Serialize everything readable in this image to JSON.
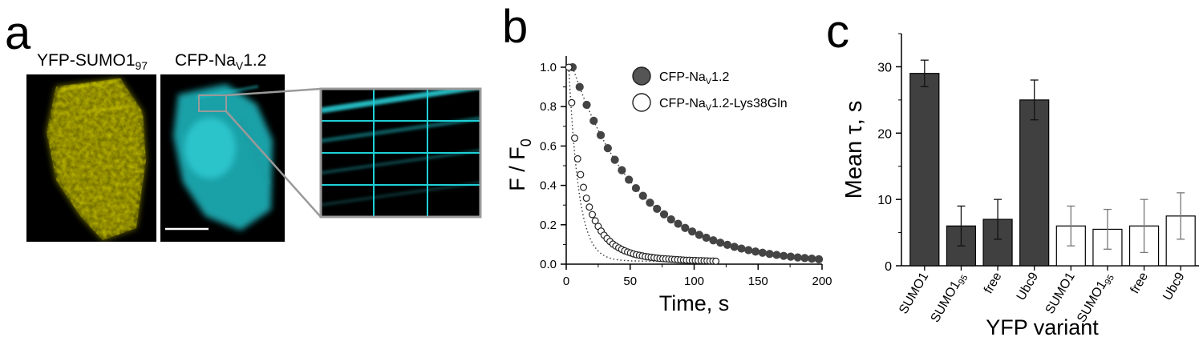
{
  "panel_a": {
    "letter": "a",
    "image1": {
      "label": "YFP-SUMO1",
      "label_sub": "97",
      "color": "#c9c400"
    },
    "image2": {
      "label": "CFP-Na",
      "label_sub": "V",
      "label_suffix": "1.2",
      "color": "#1fd0d8"
    },
    "zoom_grid_color": "#1fd0d8",
    "scale_bar_color": "#ffffff"
  },
  "panel_b": {
    "letter": "b"
  },
  "panel_c": {
    "letter": "c"
  },
  "chart_data": [
    {
      "type": "scatter",
      "panel": "b",
      "xlabel": "Time, s",
      "ylabel": {
        "main": "F / F",
        "sub": "0"
      },
      "xlim": [
        0,
        200
      ],
      "ylim": [
        0,
        1.0
      ],
      "xticks": [
        0,
        50,
        100,
        150,
        200
      ],
      "xtick_labels": [
        "0",
        "50",
        "100",
        "150",
        "200"
      ],
      "yticks": [
        0.0,
        0.2,
        0.4,
        0.6,
        0.8,
        1.0
      ],
      "ytick_labels": [
        "0.0",
        "0.2",
        "0.4",
        "0.6",
        "0.8",
        "1.0"
      ],
      "legend_placement": "top-right",
      "series": [
        {
          "name": {
            "main": "CFP-Na",
            "sub": "V",
            "suffix": "1.2"
          },
          "marker": "filled",
          "color": "#444444",
          "fit": {
            "amplitude": 1.0,
            "tau": 52,
            "t0": 5
          },
          "x": [
            5,
            10.5,
            16,
            21.5,
            27,
            32.5,
            38,
            43.5,
            49,
            54.5,
            60,
            65.5,
            71,
            76.5,
            82,
            87.5,
            93,
            98.5,
            104,
            109.5,
            115,
            120.5,
            126,
            131.5,
            137,
            142.5,
            148,
            153.5,
            159,
            164.5,
            170,
            175.5,
            181,
            186.5,
            192,
            197.5
          ],
          "y": [
            1.0,
            0.9,
            0.809,
            0.728,
            0.655,
            0.589,
            0.53,
            0.477,
            0.429,
            0.386,
            0.347,
            0.312,
            0.281,
            0.253,
            0.227,
            0.205,
            0.184,
            0.166,
            0.149,
            0.134,
            0.121,
            0.109,
            0.098,
            0.088,
            0.079,
            0.071,
            0.064,
            0.058,
            0.052,
            0.047,
            0.042,
            0.038,
            0.034,
            0.031,
            0.028,
            0.025
          ]
        },
        {
          "name": {
            "main": "CFP-Na",
            "sub": "V",
            "suffix": "1.2-Lys38Gln"
          },
          "marker": "open",
          "color": "#222222",
          "fit": {
            "amplitude": 0.93,
            "tau": 7.8,
            "t0": 2,
            "offset": 0.07,
            "plateau": 0.015
          },
          "x": [
            2,
            4.3,
            6.6,
            8.9,
            11.2,
            13.5,
            15.8,
            18.1,
            20.4,
            22.7,
            25,
            27.3,
            29.6,
            31.9,
            34.2,
            36.5,
            38.8,
            41.1,
            43.4,
            45.7,
            48,
            50.3,
            52.6,
            54.9,
            57.2,
            59.5,
            61.8,
            64.1,
            66.4,
            68.7,
            71,
            73.3,
            75.6,
            77.9,
            80.2,
            82.5,
            84.8,
            87.1,
            89.4,
            91.7,
            94,
            96.3,
            98.6,
            100.9,
            103.2,
            105.5,
            107.8,
            110.1,
            112.4,
            114.7,
            117
          ],
          "y": [
            1.0,
            0.82,
            0.64,
            0.535,
            0.455,
            0.39,
            0.335,
            0.29,
            0.252,
            0.22,
            0.192,
            0.168,
            0.147,
            0.13,
            0.115,
            0.102,
            0.092,
            0.083,
            0.075,
            0.068,
            0.062,
            0.057,
            0.052,
            0.048,
            0.045,
            0.042,
            0.039,
            0.037,
            0.035,
            0.033,
            0.031,
            0.029,
            0.028,
            0.027,
            0.026,
            0.025,
            0.024,
            0.023,
            0.022,
            0.021,
            0.02,
            0.02,
            0.019,
            0.019,
            0.018,
            0.018,
            0.017,
            0.017,
            0.016,
            0.016,
            0.015
          ]
        }
      ]
    },
    {
      "type": "bar",
      "panel": "c",
      "xlabel": "YFP variant",
      "ylabel": "Mean τ, s",
      "ylim": [
        0,
        35
      ],
      "yticks": [
        0,
        10,
        20,
        30
      ],
      "ytick_labels": [
        "0",
        "10",
        "20",
        "30"
      ],
      "categories": [
        {
          "main": "SUMO1",
          "sub": ""
        },
        {
          "main": "SUMO1",
          "sub": "95"
        },
        {
          "main": "free",
          "sub": ""
        },
        {
          "main": "Ubc9",
          "sub": ""
        },
        {
          "main": "SUMO1",
          "sub": ""
        },
        {
          "main": "SUMO1",
          "sub": "95"
        },
        {
          "main": "free",
          "sub": ""
        },
        {
          "main": "Ubc9",
          "sub": ""
        }
      ],
      "values": [
        29,
        6,
        7,
        25,
        6,
        5.5,
        6,
        7.5
      ],
      "errors": [
        2,
        3,
        3,
        3,
        3,
        3,
        4,
        3.5
      ],
      "fill": [
        "#404040",
        "#404040",
        "#404040",
        "#404040",
        "#ffffff",
        "#ffffff",
        "#ffffff",
        "#ffffff"
      ],
      "error_color": [
        "#111111",
        "#111111",
        "#111111",
        "#111111",
        "#777777",
        "#777777",
        "#777777",
        "#777777"
      ]
    }
  ]
}
